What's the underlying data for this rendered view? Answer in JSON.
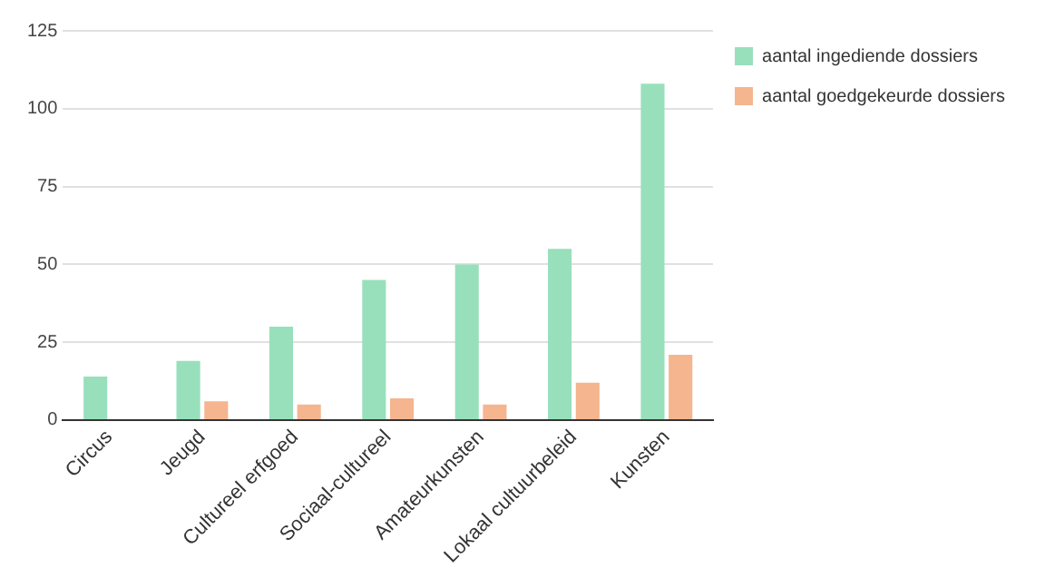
{
  "chart_data": {
    "type": "bar",
    "categories": [
      "Circus",
      "Jeugd",
      "Cultureel erfgoed",
      "Sociaal-cultureel",
      "Amateurkunsten",
      "Lokaal cultuurbeleid",
      "Kunsten"
    ],
    "series": [
      {
        "name": "aantal ingediende dossiers",
        "color": "#97e0bb",
        "values": [
          14,
          19,
          30,
          45,
          50,
          55,
          108
        ]
      },
      {
        "name": "aantal goedgekeurde dossiers",
        "color": "#f4b58f",
        "values": [
          0,
          6,
          5,
          7,
          5,
          12,
          21
        ]
      }
    ],
    "ylim": [
      0,
      125
    ],
    "yticks": [
      0,
      25,
      50,
      75,
      100,
      125
    ],
    "grid": "y",
    "legend": "top right"
  }
}
